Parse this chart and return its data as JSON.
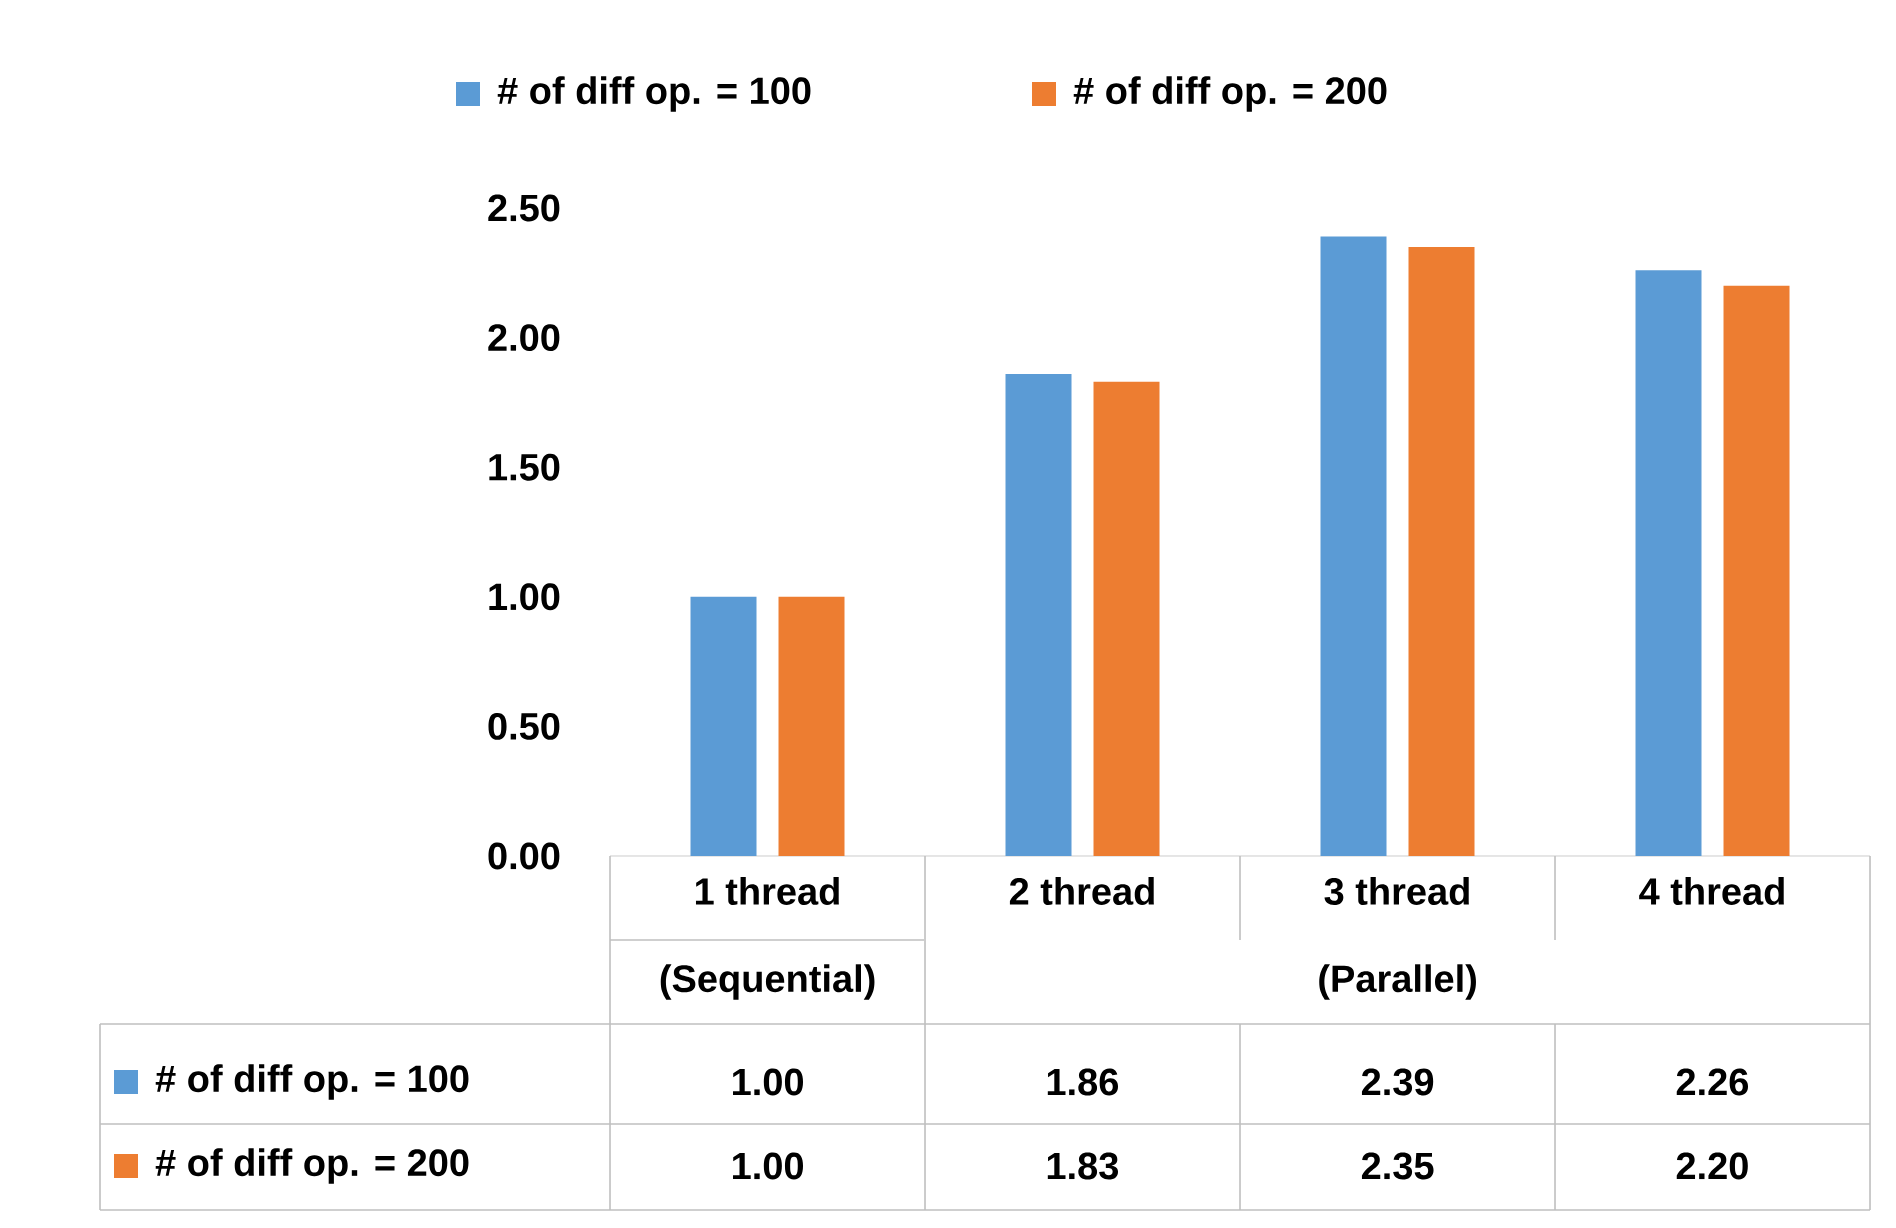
{
  "chart_data": {
    "type": "bar",
    "categories": [
      "1 thread",
      "2 thread",
      "3 thread",
      "4 thread"
    ],
    "series": [
      {
        "name": "# of diff op. = 100",
        "color": "#5b9bd5",
        "values": [
          1.0,
          1.86,
          2.39,
          2.26
        ],
        "value_labels": [
          "1.00",
          "1.86",
          "2.39",
          "2.26"
        ]
      },
      {
        "name": "# of diff op. = 200",
        "color": "#ed7d31",
        "values": [
          1.0,
          1.83,
          2.35,
          2.2
        ],
        "value_labels": [
          "1.00",
          "1.83",
          "2.35",
          "2.20"
        ]
      }
    ],
    "ylim": [
      0,
      2.5
    ],
    "yticks": [
      {
        "value": 0,
        "label": "0.00"
      },
      {
        "value": 0.5,
        "label": "0.50"
      },
      {
        "value": 1,
        "label": "1.00"
      },
      {
        "value": 1.5,
        "label": "1.50"
      },
      {
        "value": 2,
        "label": "2.00"
      },
      {
        "value": 2.5,
        "label": "2.50"
      }
    ],
    "legend": "top",
    "annotations": [
      "(Sequential)",
      "(Parallel)"
    ]
  }
}
